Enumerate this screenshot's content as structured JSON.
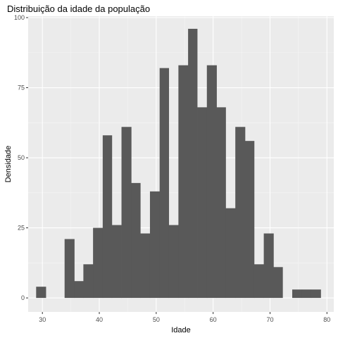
{
  "chart_data": {
    "type": "bar",
    "title": "Distribuição da idade da população",
    "xlabel": "Idade",
    "ylabel": "Densidade",
    "xlim": [
      27.5,
      81.2
    ],
    "ylim": [
      -5,
      100.5
    ],
    "xticks": [
      30,
      40,
      50,
      60,
      70,
      80
    ],
    "yticks": [
      0,
      25,
      50,
      75,
      100
    ],
    "bin_width": 1.67,
    "bins": [
      {
        "x0": 28.9,
        "x1": 30.6,
        "count": 4
      },
      {
        "x0": 30.6,
        "x1": 32.2,
        "count": 0
      },
      {
        "x0": 32.2,
        "x1": 33.9,
        "count": 0
      },
      {
        "x0": 33.9,
        "x1": 35.6,
        "count": 21
      },
      {
        "x0": 35.6,
        "x1": 37.2,
        "count": 6
      },
      {
        "x0": 37.2,
        "x1": 38.9,
        "count": 12
      },
      {
        "x0": 38.9,
        "x1": 40.6,
        "count": 25
      },
      {
        "x0": 40.6,
        "x1": 42.2,
        "count": 58
      },
      {
        "x0": 42.2,
        "x1": 43.9,
        "count": 26
      },
      {
        "x0": 43.9,
        "x1": 45.6,
        "count": 61
      },
      {
        "x0": 45.6,
        "x1": 47.2,
        "count": 41
      },
      {
        "x0": 47.2,
        "x1": 48.9,
        "count": 23
      },
      {
        "x0": 48.9,
        "x1": 50.6,
        "count": 38
      },
      {
        "x0": 50.6,
        "x1": 52.2,
        "count": 82
      },
      {
        "x0": 52.2,
        "x1": 53.9,
        "count": 26
      },
      {
        "x0": 53.9,
        "x1": 55.6,
        "count": 83
      },
      {
        "x0": 55.6,
        "x1": 57.2,
        "count": 96
      },
      {
        "x0": 57.2,
        "x1": 58.9,
        "count": 68
      },
      {
        "x0": 58.9,
        "x1": 60.6,
        "count": 83
      },
      {
        "x0": 60.6,
        "x1": 62.2,
        "count": 68
      },
      {
        "x0": 62.2,
        "x1": 63.9,
        "count": 32
      },
      {
        "x0": 63.9,
        "x1": 65.6,
        "count": 61
      },
      {
        "x0": 65.6,
        "x1": 67.2,
        "count": 56
      },
      {
        "x0": 67.2,
        "x1": 68.9,
        "count": 12
      },
      {
        "x0": 68.9,
        "x1": 70.6,
        "count": 23
      },
      {
        "x0": 70.6,
        "x1": 72.2,
        "count": 11
      },
      {
        "x0": 72.2,
        "x1": 73.9,
        "count": 0
      },
      {
        "x0": 73.9,
        "x1": 75.6,
        "count": 3
      },
      {
        "x0": 75.6,
        "x1": 77.2,
        "count": 3
      },
      {
        "x0": 77.2,
        "x1": 78.9,
        "count": 3
      }
    ],
    "grid": true,
    "colors": {
      "panel": "#ebebeb",
      "grid_major": "#ffffff",
      "bar": "#595959"
    }
  }
}
